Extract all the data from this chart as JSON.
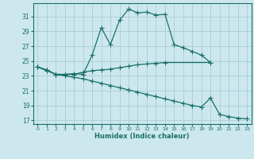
{
  "xlabel": "Humidex (Indice chaleur)",
  "background_color": "#cce8ee",
  "grid_color": "#aaccd4",
  "line_color": "#1a7068",
  "x_ticks": [
    0,
    1,
    2,
    3,
    4,
    5,
    6,
    7,
    8,
    9,
    10,
    11,
    12,
    13,
    14,
    15,
    16,
    17,
    18,
    19,
    20,
    21,
    22,
    23
  ],
  "y_ticks": [
    17,
    19,
    21,
    23,
    25,
    27,
    29,
    31
  ],
  "ylim": [
    16.5,
    32.8
  ],
  "xlim": [
    -0.5,
    23.5
  ],
  "series1_x": [
    0,
    1,
    2,
    3,
    4,
    5,
    6,
    7,
    8,
    9,
    10,
    11,
    12,
    13,
    14,
    15,
    16,
    17,
    18,
    19
  ],
  "series1_y": [
    24.2,
    23.8,
    23.2,
    23.2,
    23.3,
    23.2,
    25.8,
    29.5,
    27.2,
    30.5,
    32.0,
    31.5,
    31.6,
    31.2,
    31.3,
    27.2,
    26.8,
    26.3,
    25.8,
    24.8
  ],
  "series2_x": [
    0,
    1,
    2,
    3,
    4,
    5,
    6,
    7,
    8,
    9,
    10,
    11,
    12,
    13,
    14,
    19
  ],
  "series2_y": [
    24.2,
    23.8,
    23.2,
    23.2,
    23.2,
    23.5,
    23.7,
    23.8,
    23.9,
    24.1,
    24.3,
    24.5,
    24.6,
    24.7,
    24.8,
    24.8
  ],
  "series3_x": [
    0,
    1,
    2,
    3,
    4,
    5,
    6,
    7,
    8,
    9,
    10,
    11,
    12,
    13,
    14,
    15,
    16,
    17,
    18,
    19,
    20,
    21,
    22,
    23
  ],
  "series3_y": [
    24.2,
    23.7,
    23.2,
    23.0,
    22.8,
    22.6,
    22.3,
    22.0,
    21.7,
    21.4,
    21.1,
    20.8,
    20.5,
    20.2,
    19.9,
    19.6,
    19.3,
    19.0,
    18.8,
    20.0,
    17.8,
    17.5,
    17.3,
    17.2
  ]
}
